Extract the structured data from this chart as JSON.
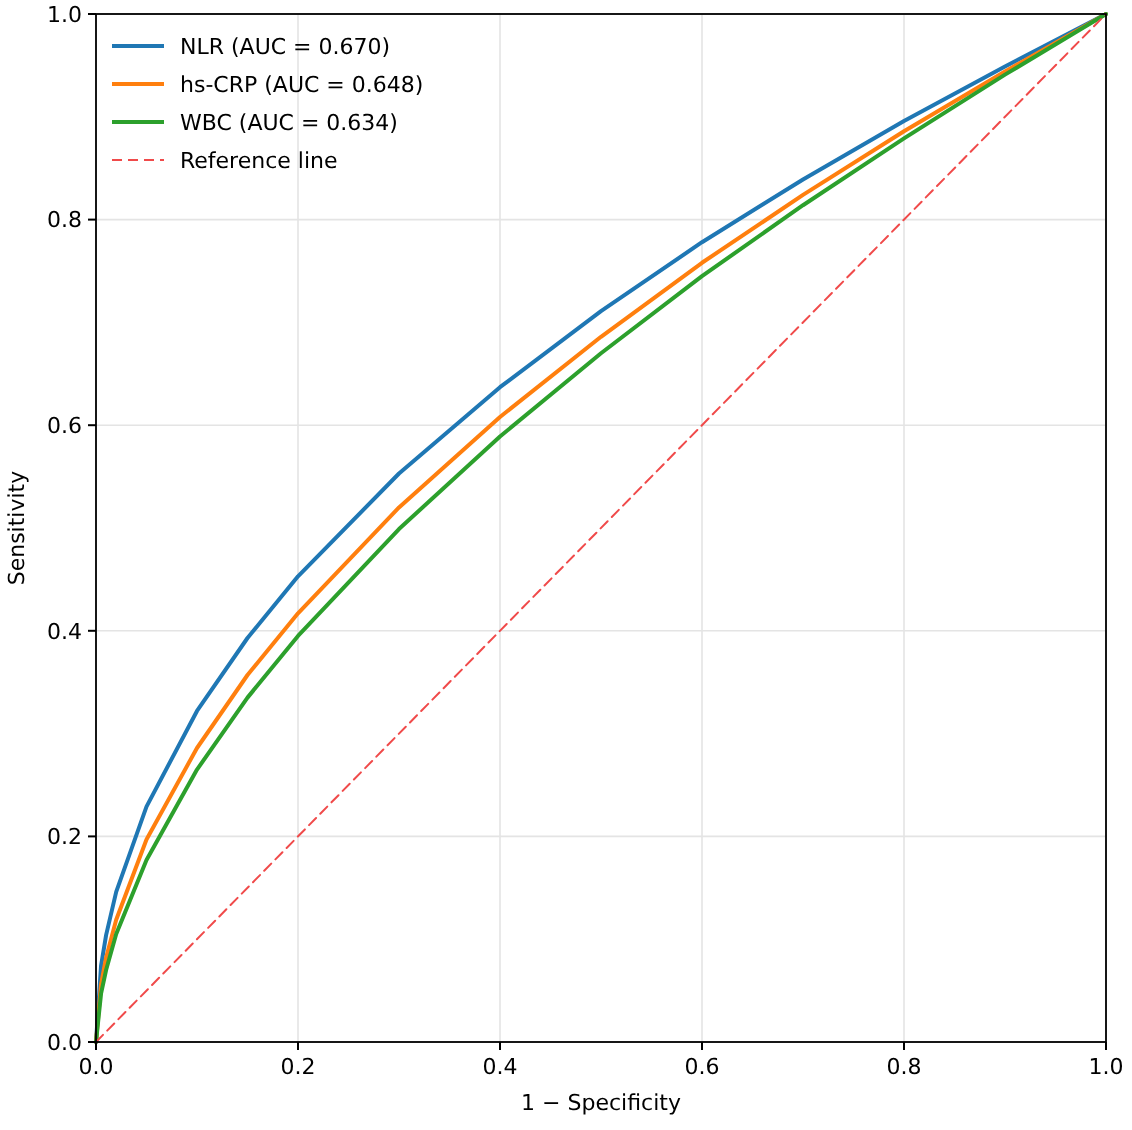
{
  "chart_data": {
    "type": "line",
    "xlabel": "1 − Specificity",
    "ylabel": "Sensitivity",
    "xlim": [
      0,
      1
    ],
    "ylim": [
      0,
      1
    ],
    "xticks": [
      {
        "value": 0,
        "label": "0.0"
      },
      {
        "value": 0.2,
        "label": "0.2"
      },
      {
        "value": 0.4,
        "label": "0.4"
      },
      {
        "value": 0.6,
        "label": "0.6"
      },
      {
        "value": 0.8,
        "label": "0.8"
      },
      {
        "value": 1,
        "label": "1.0"
      }
    ],
    "yticks": [
      {
        "value": 0,
        "label": "0.0"
      },
      {
        "value": 0.2,
        "label": "0.2"
      },
      {
        "value": 0.4,
        "label": "0.4"
      },
      {
        "value": 0.6,
        "label": "0.6"
      },
      {
        "value": 0.8,
        "label": "0.8"
      },
      {
        "value": 1,
        "label": "1.0"
      }
    ],
    "x": [
      0,
      0.005,
      0.01,
      0.02,
      0.05,
      0.1,
      0.15,
      0.2,
      0.3,
      0.4,
      0.5,
      0.6,
      0.7,
      0.8,
      0.9,
      1
    ],
    "series": [
      {
        "name": "NLR (AUC = 0.670)",
        "color": "#1f77b4",
        "values": [
          0,
          0.074,
          0.104,
          0.146,
          0.229,
          0.322,
          0.393,
          0.453,
          0.553,
          0.637,
          0.711,
          0.778,
          0.839,
          0.896,
          0.949,
          1
        ]
      },
      {
        "name": "hs-CRP (AUC = 0.648)",
        "color": "#ff7f0e",
        "values": [
          0,
          0.056,
          0.082,
          0.119,
          0.197,
          0.286,
          0.357,
          0.417,
          0.52,
          0.608,
          0.686,
          0.758,
          0.824,
          0.886,
          0.944,
          1
        ]
      },
      {
        "name": "WBC (AUC = 0.634)",
        "color": "#2ca02c",
        "values": [
          0,
          0.047,
          0.07,
          0.105,
          0.177,
          0.265,
          0.335,
          0.395,
          0.499,
          0.589,
          0.67,
          0.745,
          0.814,
          0.879,
          0.941,
          1
        ]
      },
      {
        "name": "Reference line",
        "color": "#f04a4a",
        "line_style": "dashed",
        "x": [
          0,
          1
        ],
        "values": [
          0,
          1
        ]
      }
    ],
    "grid": true,
    "legend": "top left",
    "marker": "none",
    "line_style": "solid"
  }
}
